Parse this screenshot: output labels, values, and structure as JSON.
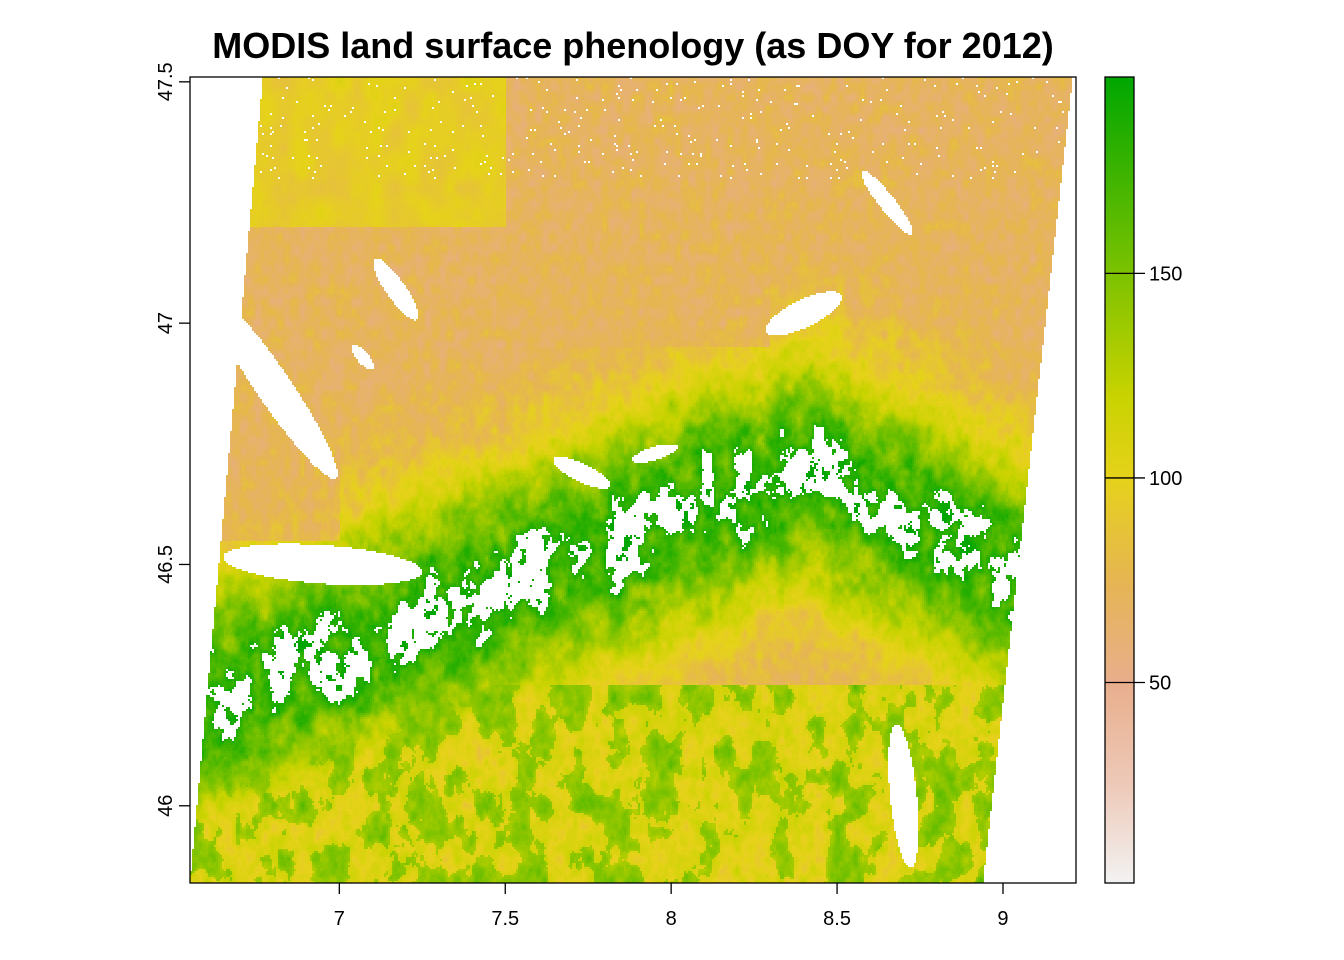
{
  "chart_data": {
    "type": "heatmap",
    "title": "MODIS land surface phenology (as DOY for 2012)",
    "xlabel": "",
    "ylabel": "",
    "xlim": [
      6.55,
      9.22
    ],
    "ylim": [
      45.84,
      47.51
    ],
    "x_ticks": [
      {
        "value": 7,
        "label": "7"
      },
      {
        "value": 7.5,
        "label": "7.5"
      },
      {
        "value": 8,
        "label": "8"
      },
      {
        "value": 8.5,
        "label": "8.5"
      },
      {
        "value": 9,
        "label": "9"
      }
    ],
    "y_ticks": [
      {
        "value": 46,
        "label": "46"
      },
      {
        "value": 46.5,
        "label": "46.5"
      },
      {
        "value": 47,
        "label": "47"
      },
      {
        "value": 47.5,
        "label": "47.5"
      }
    ],
    "colorbar": {
      "range": [
        1,
        198
      ],
      "ticks": [
        {
          "value": 50,
          "label": "50"
        },
        {
          "value": 100,
          "label": "100"
        },
        {
          "value": 150,
          "label": "150"
        }
      ],
      "color_stops": [
        {
          "value": 1,
          "color": "#f2f2f2"
        },
        {
          "value": 25,
          "color": "#eec9b8"
        },
        {
          "value": 50,
          "color": "#e8ae8c"
        },
        {
          "value": 75,
          "color": "#e6b552"
        },
        {
          "value": 100,
          "color": "#e6d21a"
        },
        {
          "value": 120,
          "color": "#c8d300"
        },
        {
          "value": 150,
          "color": "#7cc200"
        },
        {
          "value": 198,
          "color": "#00a600"
        }
      ]
    },
    "grid": false,
    "legend": "colorbar-right"
  },
  "colors": {
    "background": "#ffffff",
    "axis": "#000000",
    "nodata": "#ffffff"
  }
}
